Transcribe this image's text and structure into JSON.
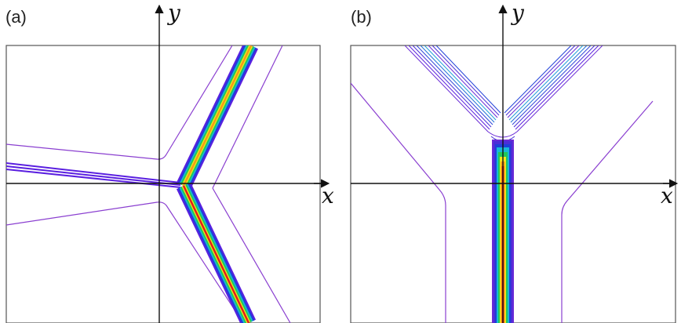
{
  "panels": [
    {
      "label": "(a)",
      "x_axis_label": "x",
      "y_axis_label": "y",
      "description_shape": "three-arm junction"
    },
    {
      "label": "(b)",
      "x_axis_label": "x",
      "y_axis_label": "y",
      "description_shape": "Y-shaped junction"
    }
  ],
  "colors": {
    "frame": "#555555",
    "axis": "#111111",
    "outer_contour": "#8a3fd0",
    "inner_purple": "#5a1fe0",
    "violet": "#6a2ad6",
    "blue": "#1f3fd8",
    "cyan": "#19b8d8",
    "green": "#22c85a",
    "yellow": "#f2ea1a",
    "orange": "#f49b18",
    "red": "#e01d1d"
  }
}
